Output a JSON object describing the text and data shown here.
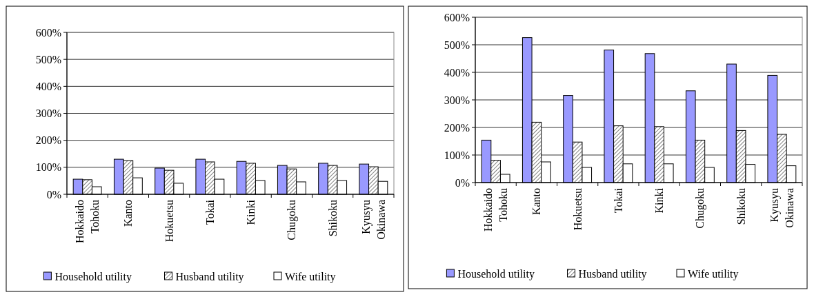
{
  "chart_data": [
    {
      "type": "bar",
      "categories": [
        "Hokkaido Tohoku",
        "Kanto",
        "Hokuetsu",
        "Tokai",
        "Kinki",
        "Chugoku",
        "Shikoku",
        "Kyusyu Okinawa"
      ],
      "series": [
        {
          "name": "Household utility",
          "color": "#9999ff",
          "values": [
            56,
            130,
            97,
            130,
            122,
            107,
            115,
            112
          ]
        },
        {
          "name": "Husband utility",
          "color": "#000000",
          "values": [
            54,
            125,
            89,
            120,
            115,
            94,
            107,
            102
          ]
        },
        {
          "name": "Wife utility",
          "color": "#ffffff",
          "values": [
            28,
            61,
            41,
            56,
            51,
            46,
            51,
            48
          ]
        }
      ],
      "ylim": [
        0,
        600
      ],
      "yticks": [
        {
          "value": 0,
          "label": "0%"
        },
        {
          "value": 100,
          "label": "100%"
        },
        {
          "value": 200,
          "label": "200%"
        },
        {
          "value": 300,
          "label": "300%"
        },
        {
          "value": 400,
          "label": "400%"
        },
        {
          "value": 500,
          "label": "500%"
        },
        {
          "value": 600,
          "label": "600%"
        }
      ],
      "grid": "y",
      "legend": "bottom"
    },
    {
      "type": "bar",
      "categories": [
        "Hokkaido Tohoku",
        "Kanto",
        "Hokuetsu",
        "Tokai",
        "Kinki",
        "Chugoku",
        "Shikoku",
        "Kyusyu Okinawa"
      ],
      "series": [
        {
          "name": "Household utility",
          "color": "#9999ff",
          "values": [
            154,
            526,
            316,
            481,
            468,
            333,
            430,
            389
          ]
        },
        {
          "name": "Husband utility",
          "color": "#000000",
          "values": [
            81,
            219,
            147,
            206,
            203,
            154,
            189,
            175
          ]
        },
        {
          "name": "Wife utility",
          "color": "#ffffff",
          "values": [
            30,
            75,
            55,
            68,
            68,
            55,
            66,
            61
          ]
        }
      ],
      "ylim": [
        0,
        600
      ],
      "yticks": [
        {
          "value": 0,
          "label": "0%"
        },
        {
          "value": 100,
          "label": "100%"
        },
        {
          "value": 200,
          "label": "200%"
        },
        {
          "value": 300,
          "label": "300%"
        },
        {
          "value": 400,
          "label": "400%"
        },
        {
          "value": 500,
          "label": "500%"
        },
        {
          "value": 600,
          "label": "600%"
        }
      ],
      "grid": "y",
      "legend": "bottom"
    }
  ]
}
